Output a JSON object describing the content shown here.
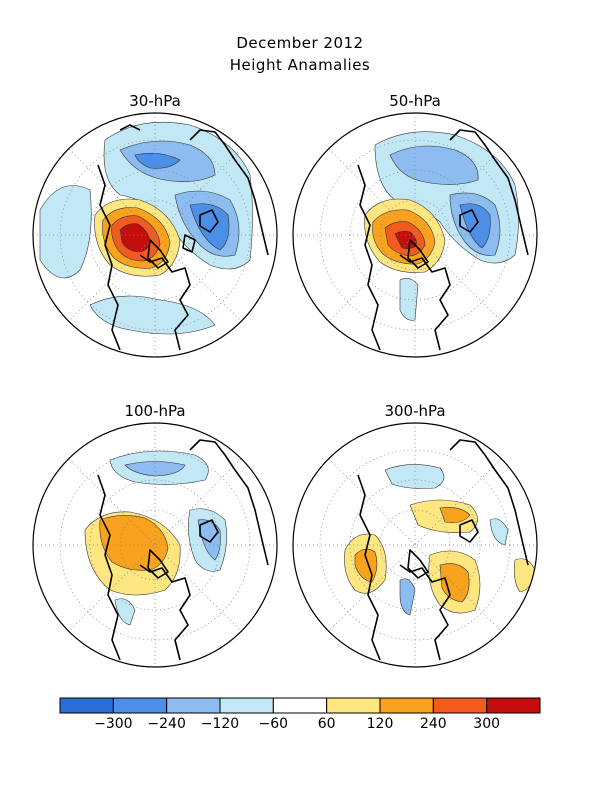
{
  "title": {
    "line1": "December 2012",
    "line2": "Height Anamalies"
  },
  "panels": [
    {
      "label": "30-hPa"
    },
    {
      "label": "50-hPa"
    },
    {
      "label": "100-hPa"
    },
    {
      "label": "300-hPa"
    }
  ],
  "colorbar": {
    "colors": [
      "#2a6fd8",
      "#4c8fe8",
      "#8cbcf0",
      "#c2e8f6",
      "#ffffff",
      "#fee680",
      "#f9a21e",
      "#f35a1e",
      "#c40d0d"
    ],
    "tick_labels": [
      "-300",
      "-240",
      "-120",
      "-60",
      "60",
      "120",
      "240",
      "300"
    ]
  }
}
